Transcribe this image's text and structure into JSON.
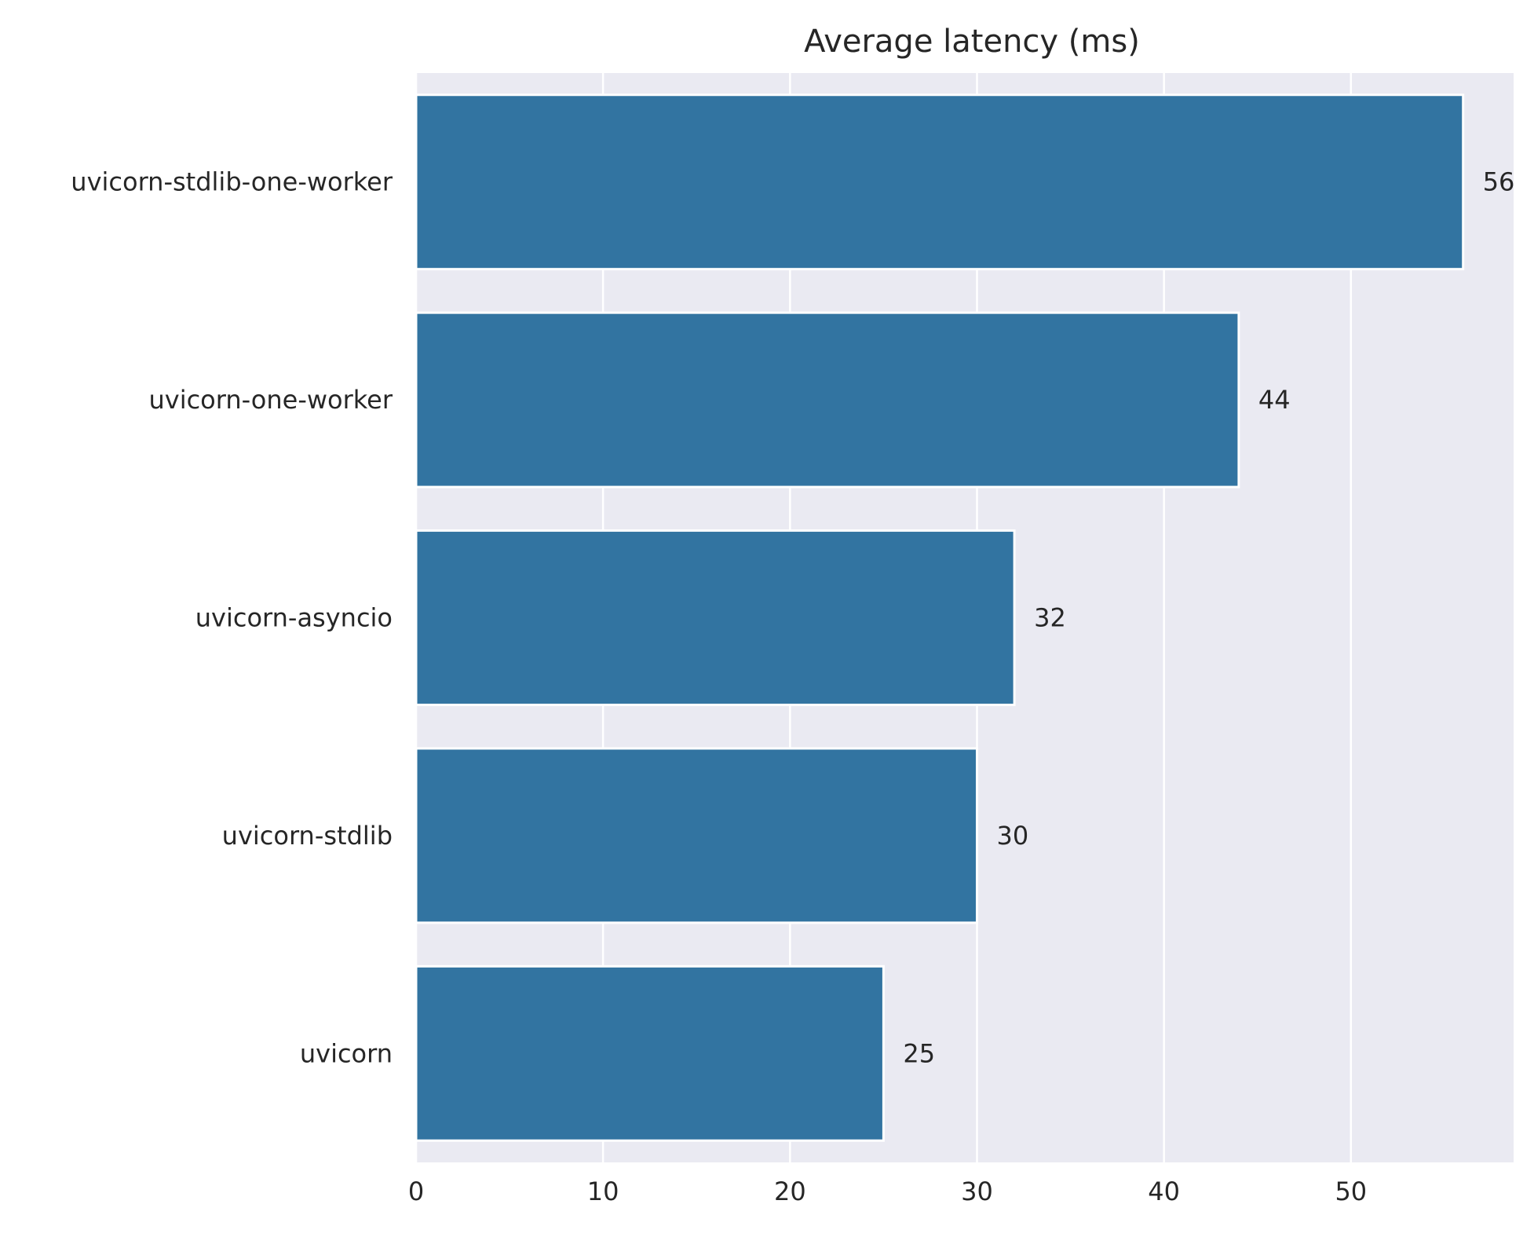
{
  "chart_data": {
    "type": "bar",
    "orientation": "horizontal",
    "title": "Average latency (ms)",
    "xlabel": "",
    "ylabel": "",
    "categories": [
      "uvicorn-stdlib-one-worker",
      "uvicorn-one-worker",
      "uvicorn-asyncio",
      "uvicorn-stdlib",
      "uvicorn"
    ],
    "values": [
      56,
      44,
      32,
      30,
      25
    ],
    "data_labels": [
      "56",
      "44",
      "32",
      "30",
      "25"
    ],
    "xlim": [
      0,
      58.7
    ],
    "x_ticks": [
      0,
      10,
      20,
      30,
      40,
      50
    ],
    "x_tick_labels": [
      "0",
      "10",
      "20",
      "30",
      "40",
      "50"
    ],
    "grid": true,
    "legend": "none",
    "colors": {
      "bar": "#3274a1",
      "background": "#eaeaf2",
      "grid": "#ffffff",
      "text": "#262626"
    }
  }
}
